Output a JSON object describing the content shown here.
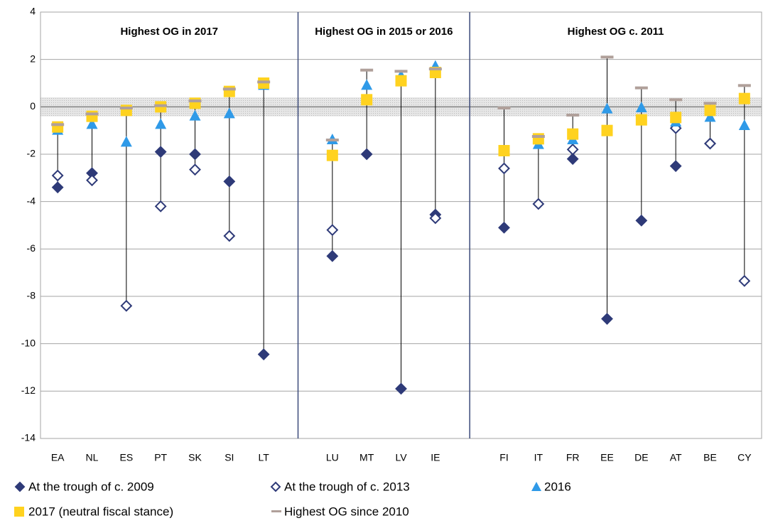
{
  "chart_data": {
    "type": "dot_range",
    "categories": [
      "EA",
      "NL",
      "ES",
      "PT",
      "SK",
      "SI",
      "LT",
      null,
      "LU",
      "MT",
      "LV",
      "IE",
      null,
      "FI",
      "IT",
      "FR",
      "EE",
      "DE",
      "AT",
      "BE",
      "CY"
    ],
    "annotations": [
      "Highest OG in 2017",
      "Highest OG in 2015 or 2016",
      "Highest OG c. 2011"
    ],
    "series": [
      {
        "name": "At the trough of c. 2009",
        "marker": "diamond",
        "color": "#2e3a78",
        "values": [
          -3.4,
          -2.8,
          null,
          -1.9,
          -2.0,
          -3.15,
          -10.45,
          null,
          -6.3,
          -2.0,
          -11.9,
          -4.55,
          null,
          -5.1,
          null,
          -2.2,
          -8.95,
          -4.8,
          -2.5,
          -1.55,
          null
        ]
      },
      {
        "name": "At the trough of c. 2013",
        "marker": "hollow-diamond",
        "color": "#2e3a78",
        "values": [
          -2.9,
          -3.1,
          -8.4,
          -4.2,
          -2.65,
          -5.45,
          null,
          null,
          -5.2,
          null,
          null,
          -4.7,
          null,
          -2.6,
          -4.1,
          -1.8,
          null,
          null,
          -0.9,
          -1.55,
          -7.35
        ]
      },
      {
        "name": "2016",
        "marker": "triangle",
        "color": "#2f9ae8",
        "values": [
          -1.0,
          -0.75,
          -1.5,
          -0.75,
          -0.4,
          -0.3,
          0.9,
          null,
          -1.4,
          0.9,
          1.3,
          1.7,
          null,
          null,
          -1.6,
          -1.4,
          -0.1,
          -0.05,
          -0.65,
          -0.45,
          -0.8
        ]
      },
      {
        "name": "2017 (neutral fiscal stance)",
        "marker": "square",
        "color": "#ffd21f",
        "values": [
          -0.85,
          -0.4,
          -0.15,
          0.0,
          0.15,
          0.65,
          1.0,
          null,
          -2.05,
          0.3,
          1.1,
          1.45,
          null,
          -1.85,
          -1.35,
          -1.15,
          -1.0,
          -0.55,
          -0.45,
          -0.15,
          0.35
        ]
      },
      {
        "name": "Highest OG since 2010",
        "marker": "dash",
        "color": "#b0a09a",
        "values": [
          -0.75,
          -0.3,
          -0.05,
          0.05,
          0.25,
          0.75,
          1.05,
          null,
          -1.4,
          1.55,
          1.5,
          1.6,
          null,
          -0.05,
          -1.25,
          -0.35,
          2.1,
          0.8,
          0.3,
          0.15,
          0.9
        ]
      }
    ],
    "neutral_band": [
      -0.4,
      0.4
    ],
    "ylim": [
      -14,
      4
    ],
    "yticks": [
      -14,
      -12,
      -10,
      -8,
      -6,
      -4,
      -2,
      0,
      2,
      4
    ],
    "grid": true
  }
}
